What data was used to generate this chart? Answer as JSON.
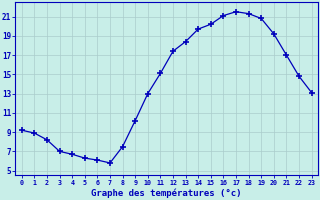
{
  "hours": [
    0,
    1,
    2,
    3,
    4,
    5,
    6,
    7,
    8,
    9,
    10,
    11,
    12,
    13,
    14,
    15,
    16,
    17,
    18,
    19,
    20,
    21,
    22,
    23
  ],
  "temps": [
    9.2,
    8.9,
    8.2,
    7.0,
    6.7,
    6.3,
    6.1,
    5.8,
    7.5,
    10.2,
    13.0,
    15.1,
    17.4,
    18.4,
    19.7,
    20.2,
    21.1,
    21.5,
    21.3,
    20.8,
    19.2,
    17.0,
    14.8,
    13.1
  ],
  "line_color": "#0000bb",
  "marker": "+",
  "marker_size": 4,
  "marker_linewidth": 1.2,
  "bg_color": "#c8eee8",
  "grid_color": "#aacccc",
  "axis_color": "#0000bb",
  "xlabel": "Graphe des températures (°c)",
  "xlabel_color": "#0000bb",
  "ylabel_ticks": [
    5,
    7,
    9,
    11,
    13,
    15,
    17,
    19,
    21
  ],
  "ylim": [
    4.5,
    22.5
  ],
  "xlim": [
    -0.5,
    23.5
  ],
  "tick_color": "#0000bb",
  "spine_color": "#0000bb"
}
